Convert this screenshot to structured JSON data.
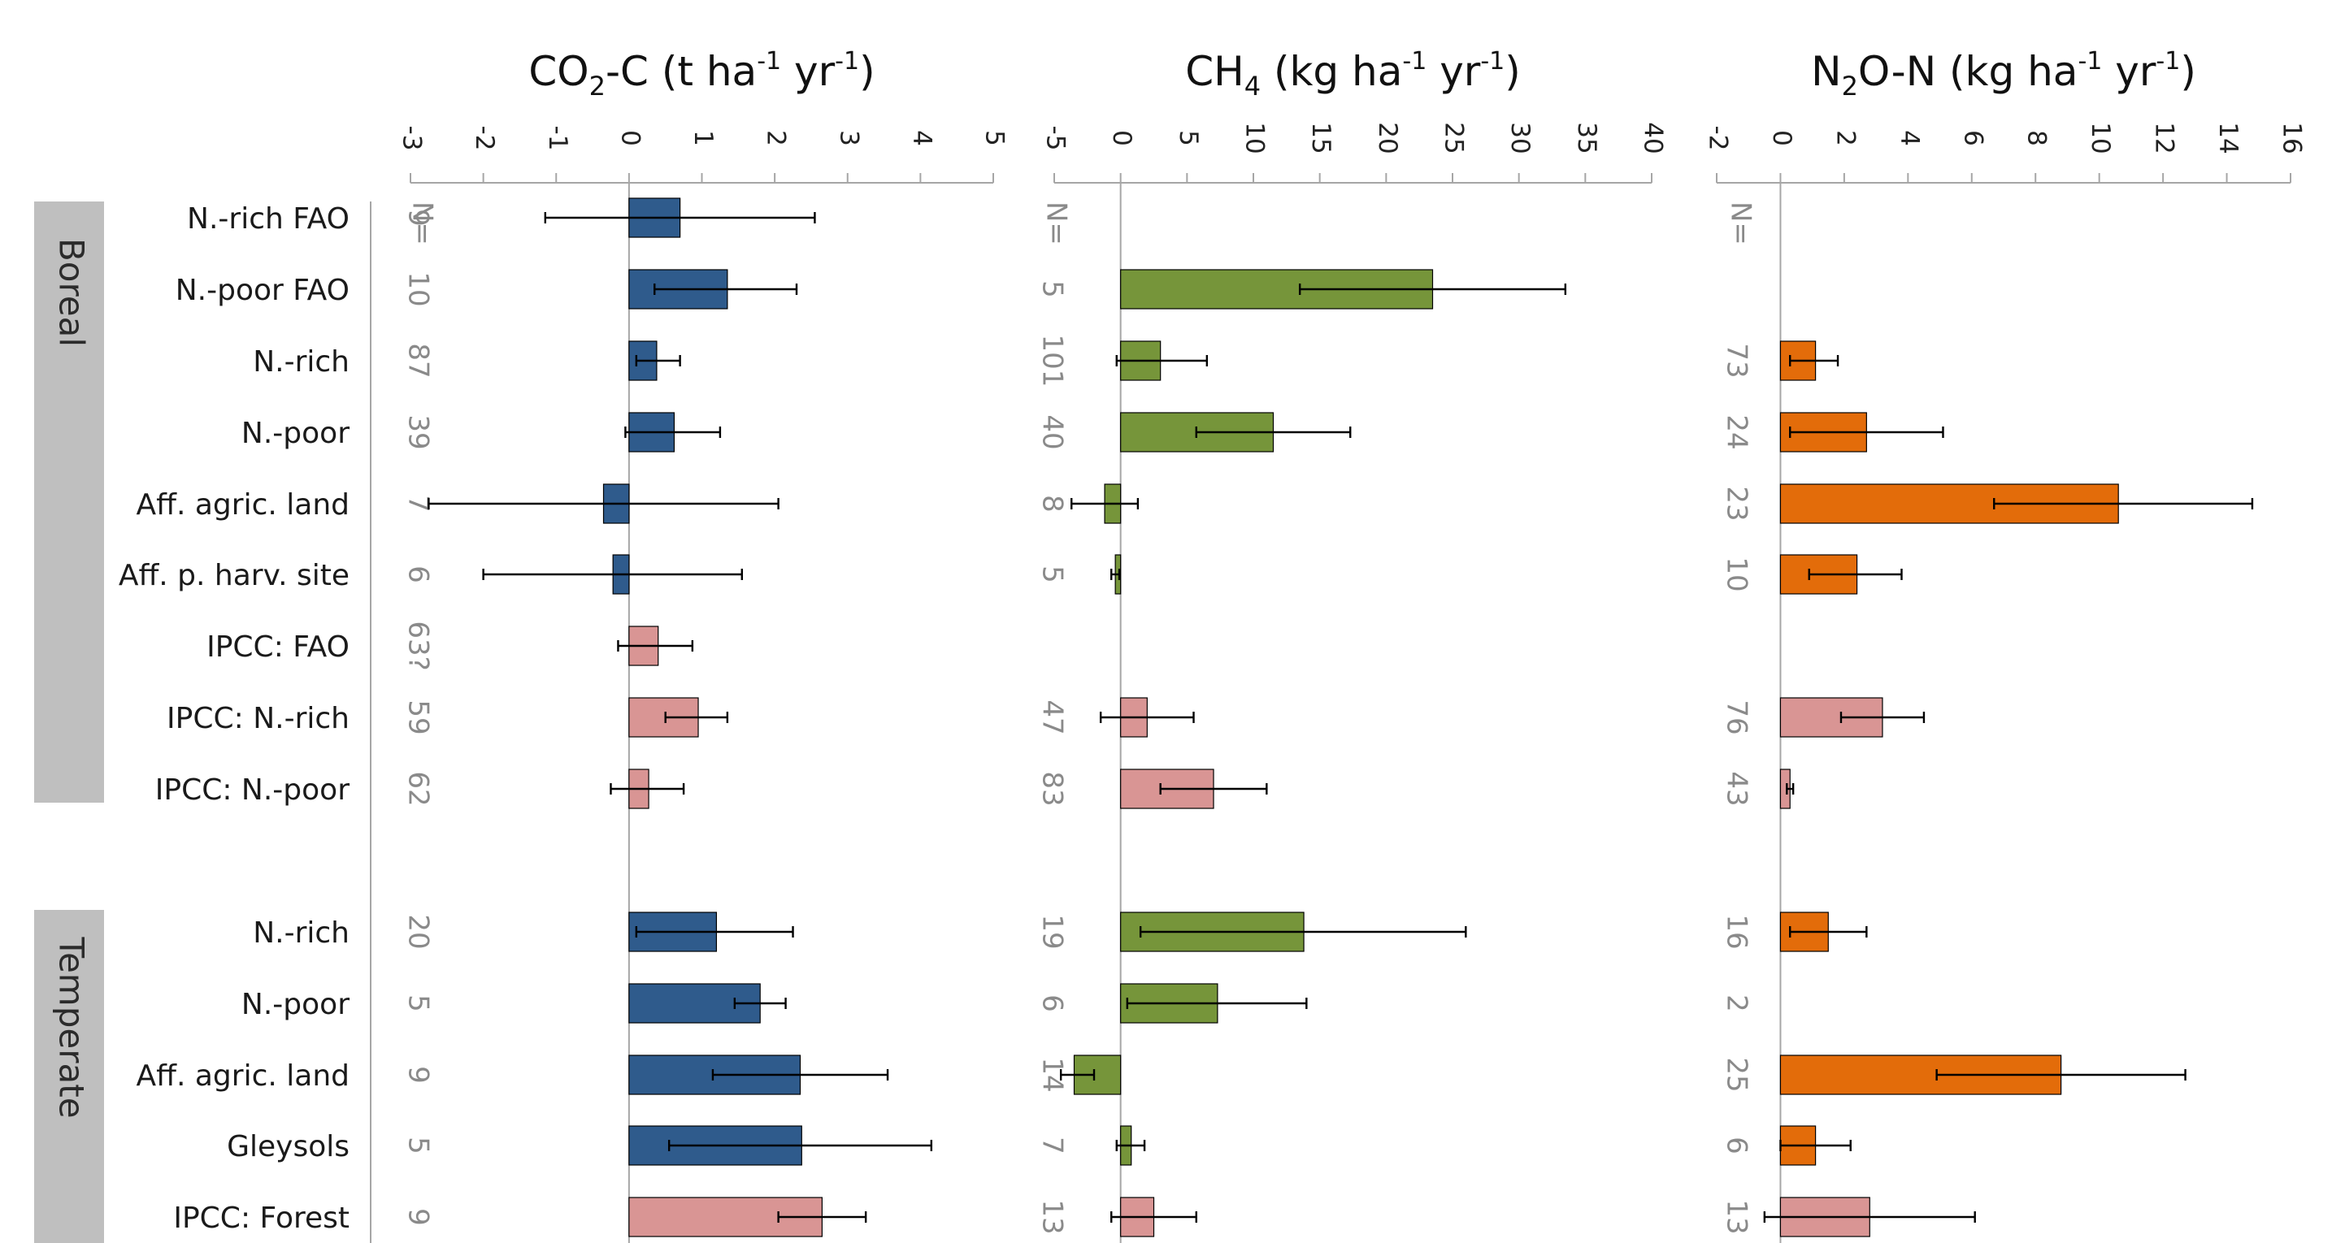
{
  "chart_data": [
    {
      "type": "bar",
      "orientation": "horizontal",
      "title": {
        "main": "CO",
        "sub": "2",
        "rest": "-C (t ha",
        "sup1": "-1",
        "mid": " yr",
        "sup2": "-1",
        "end": ")"
      },
      "xlim": [
        -3,
        5
      ],
      "ticks": [
        "-3",
        "-2",
        "-1",
        "0",
        "1",
        "2",
        "3",
        "4",
        "5"
      ],
      "n_header": "N=",
      "categories": [
        "N.-rich FAO",
        "N.-poor FAO",
        "N.-rich",
        "N.-poor",
        "Aff. agric. land",
        "Aff. p. harv. site",
        "IPCC: FAO",
        "IPCC: N.-rich",
        "IPCC: N.-poor",
        "N.-rich",
        "N.-poor",
        "Aff. agric. land",
        "Gleysols",
        "IPCC: Forest"
      ],
      "values": [
        0.7,
        1.35,
        0.38,
        0.62,
        -0.35,
        -0.22,
        0.4,
        0.95,
        0.27,
        1.2,
        1.8,
        2.35,
        2.37,
        2.65
      ],
      "err_low": [
        -1.15,
        0.35,
        0.1,
        -0.05,
        -2.75,
        -2.0,
        -0.15,
        0.5,
        -0.25,
        0.1,
        1.45,
        1.15,
        0.55,
        2.05
      ],
      "err_high": [
        2.55,
        2.3,
        0.7,
        1.25,
        2.05,
        1.55,
        0.87,
        1.35,
        0.75,
        2.25,
        2.15,
        3.55,
        4.15,
        3.25
      ],
      "n": [
        "9",
        "10",
        "87",
        "39",
        "7",
        "6",
        "63?",
        "59",
        "62",
        "20",
        "5",
        "9",
        "5",
        "9"
      ],
      "kinds": [
        "m",
        "m",
        "m",
        "m",
        "m",
        "m",
        "i",
        "i",
        "i",
        "m",
        "m",
        "m",
        "m",
        "i"
      ]
    },
    {
      "type": "bar",
      "orientation": "horizontal",
      "title": {
        "main": "CH",
        "sub": "4",
        "rest": " (kg ha",
        "sup1": "-1",
        "mid": " yr",
        "sup2": "-1",
        "end": ")"
      },
      "xlim": [
        -5,
        40
      ],
      "ticks": [
        "-5",
        "0",
        "5",
        "10",
        "15",
        "20",
        "25",
        "30",
        "35",
        "40"
      ],
      "n_header": "N=",
      "categories": [
        "N.-rich FAO",
        "N.-poor FAO",
        "N.-rich",
        "N.-poor",
        "Aff. agric. land",
        "Aff. p. harv. site",
        "IPCC: FAO",
        "IPCC: N.-rich",
        "IPCC: N.-poor",
        "N.-rich",
        "N.-poor",
        "Aff. agric. land",
        "Gleysols",
        "IPCC: Forest"
      ],
      "values": [
        null,
        23.5,
        3.0,
        11.5,
        -1.2,
        -0.4,
        null,
        2.0,
        7.0,
        13.8,
        7.3,
        -3.5,
        0.8,
        2.5
      ],
      "err_low": [
        null,
        13.5,
        -0.3,
        5.7,
        -3.7,
        -0.7,
        null,
        -1.5,
        3.0,
        1.5,
        0.5,
        -4.5,
        -0.3,
        -0.7
      ],
      "err_high": [
        null,
        33.5,
        6.5,
        17.3,
        1.3,
        -0.1,
        null,
        5.5,
        11.0,
        26.0,
        14.0,
        -2.0,
        1.8,
        5.7
      ],
      "n": [
        "",
        "5",
        "101",
        "40",
        "8",
        "5",
        "",
        "47",
        "83",
        "19",
        "6",
        "14",
        "7",
        "13"
      ],
      "kinds": [
        "m",
        "m",
        "m",
        "m",
        "m",
        "m",
        "i",
        "i",
        "i",
        "m",
        "m",
        "m",
        "m",
        "i"
      ]
    },
    {
      "type": "bar",
      "orientation": "horizontal",
      "title": {
        "main": "N",
        "sub": "2",
        "rest": "O-N (kg ha",
        "sup1": "-1",
        "mid": " yr",
        "sup2": "-1",
        "end": ")"
      },
      "xlim": [
        -2,
        16
      ],
      "ticks": [
        "-2",
        "0",
        "2",
        "4",
        "6",
        "8",
        "10",
        "12",
        "14",
        "16"
      ],
      "n_header": "N=",
      "categories": [
        "N.-rich FAO",
        "N.-poor FAO",
        "N.-rich",
        "N.-poor",
        "Aff. agric. land",
        "Aff. p. harv. site",
        "IPCC: FAO",
        "IPCC: N.-rich",
        "IPCC: N.-poor",
        "N.-rich",
        "N.-poor",
        "Aff. agric. land",
        "Gleysols",
        "IPCC: Forest"
      ],
      "values": [
        null,
        null,
        1.1,
        2.7,
        10.6,
        2.4,
        null,
        3.2,
        0.3,
        1.5,
        null,
        8.8,
        1.1,
        2.8
      ],
      "err_low": [
        null,
        null,
        0.3,
        0.3,
        6.7,
        0.9,
        null,
        1.9,
        0.2,
        0.3,
        null,
        4.9,
        0.0,
        -0.5
      ],
      "err_high": [
        null,
        null,
        1.8,
        5.1,
        14.8,
        3.8,
        null,
        4.5,
        0.4,
        2.7,
        null,
        12.7,
        2.2,
        6.1
      ],
      "n": [
        "",
        "",
        "73",
        "24",
        "23",
        "10",
        "",
        "76",
        "43",
        "16",
        "2",
        "25",
        "6",
        "13"
      ],
      "kinds": [
        "m",
        "m",
        "m",
        "m",
        "m",
        "m",
        "i",
        "i",
        "i",
        "m",
        "m",
        "m",
        "m",
        "i"
      ]
    }
  ],
  "groups": [
    {
      "label": "Boreal"
    },
    {
      "label": "Temperate"
    }
  ],
  "colors": {
    "co2_bar": "#2f5b8c",
    "ch4_bar": "#76953a",
    "n2o_bar": "#e36c0a",
    "ipcc_bar": "#d99594",
    "group_bg": "#bfbfbf",
    "axis": "#a6a6a6",
    "error_bar": "#000000"
  }
}
